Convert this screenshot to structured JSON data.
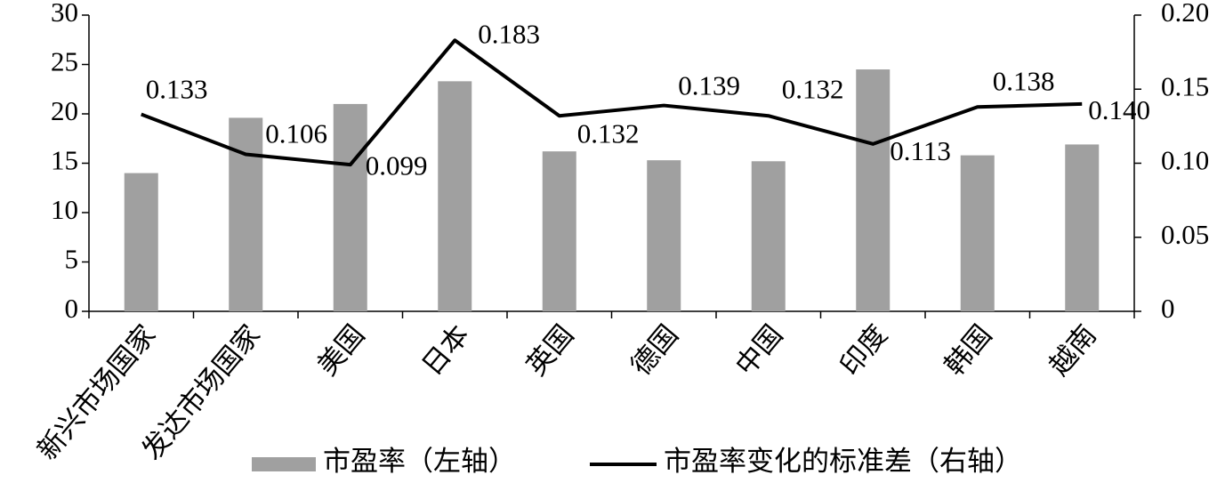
{
  "chart_data": {
    "type": "bar_line",
    "categories": [
      "新兴市场国家",
      "发达市场国家",
      "美国",
      "日本",
      "英国",
      "德国",
      "中国",
      "印度",
      "韩国",
      "越南"
    ],
    "series": [
      {
        "name": "市盈率（左轴）",
        "type": "bar",
        "color": "#a0a0a0",
        "values": [
          14.0,
          19.6,
          21.0,
          23.3,
          16.2,
          15.3,
          15.2,
          24.5,
          15.8,
          16.9
        ]
      },
      {
        "name": "市盈率变化的标准差（右轴）",
        "type": "line",
        "axis": "y2",
        "color": "#000000",
        "values": [
          0.133,
          0.106,
          0.099,
          0.183,
          0.132,
          0.139,
          0.132,
          0.113,
          0.138,
          0.14
        ],
        "value_labels": [
          "0.133",
          "0.106",
          "0.099",
          "0.183",
          "0.132",
          "0.139",
          "0.132",
          "0.113",
          "0.138",
          "0.140"
        ]
      }
    ],
    "ylim": [
      0,
      30
    ],
    "yticks": [
      0,
      5,
      10,
      15,
      20,
      25,
      30
    ],
    "y2lim": [
      0,
      0.2
    ],
    "y2ticks": [
      0,
      0.05,
      {
        "value": 0.1,
        "label": "0.10"
      },
      0.15,
      {
        "value": 0.2,
        "label": "0.20"
      }
    ],
    "legend": "bottom"
  }
}
